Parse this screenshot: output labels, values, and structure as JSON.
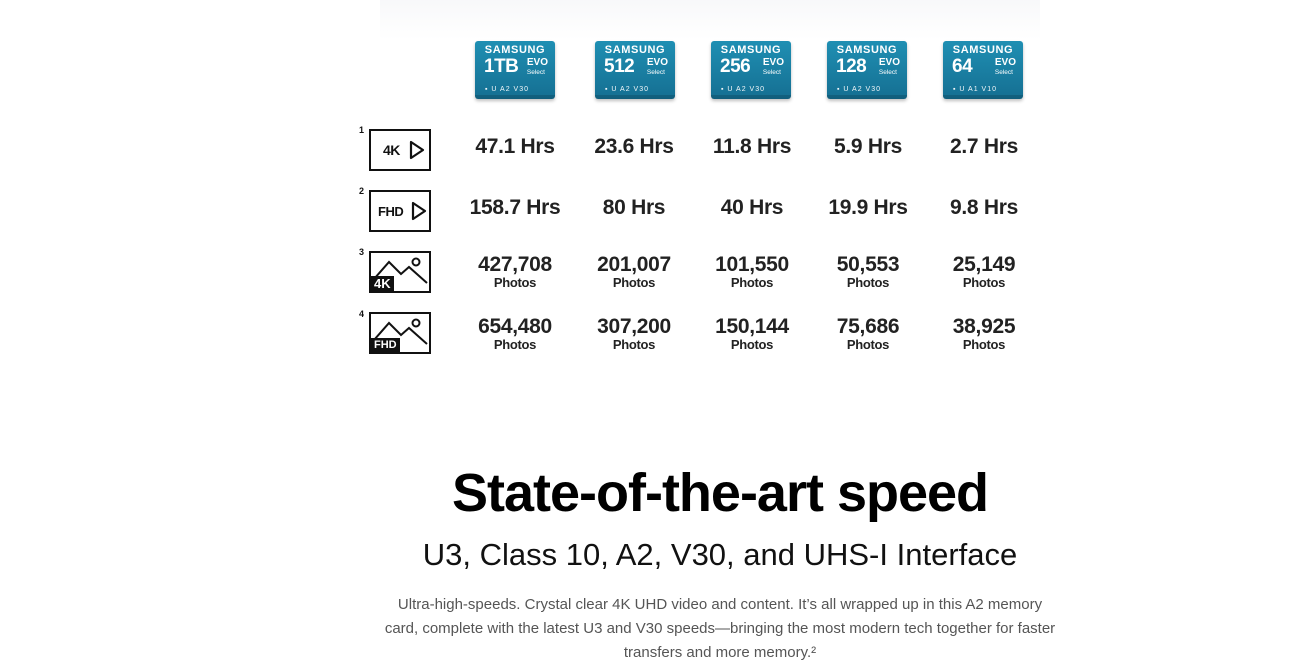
{
  "cards": [
    {
      "brand": "SAMSUNG",
      "capacity": "1TB",
      "series": "EVO",
      "sub": "Select",
      "marks": "▪ U A2 V30"
    },
    {
      "brand": "SAMSUNG",
      "capacity": "512",
      "series": "EVO",
      "sub": "Select",
      "marks": "▪ U A2 V30"
    },
    {
      "brand": "SAMSUNG",
      "capacity": "256",
      "series": "EVO",
      "sub": "Select",
      "marks": "▪ U A2 V30"
    },
    {
      "brand": "SAMSUNG",
      "capacity": "128",
      "series": "EVO",
      "sub": "Select",
      "marks": "▪ U A2 V30"
    },
    {
      "brand": "SAMSUNG",
      "capacity": "64",
      "series": "EVO",
      "sub": "Select",
      "marks": "▪ U A1 V10"
    }
  ],
  "rows": [
    {
      "sup": "1",
      "icon_label": "4K",
      "icon": "video-4k-icon",
      "values": [
        "47.1 Hrs",
        "23.6 Hrs",
        "11.8 Hrs",
        "5.9 Hrs",
        "2.7 Hrs"
      ]
    },
    {
      "sup": "2",
      "icon_label": "FHD",
      "icon": "video-fhd-icon",
      "values": [
        "158.7 Hrs",
        "80 Hrs",
        "40 Hrs",
        "19.9 Hrs",
        "9.8 Hrs"
      ]
    },
    {
      "sup": "3",
      "icon_label": "4K",
      "icon": "photo-4k-icon",
      "values": [
        "427,708",
        "201,007",
        "101,550",
        "50,553",
        "25,149"
      ],
      "unit": "Photos"
    },
    {
      "sup": "4",
      "icon_label": "FHD",
      "icon": "photo-fhd-icon",
      "values": [
        "654,480",
        "307,200",
        "150,144",
        "75,686",
        "38,925"
      ],
      "unit": "Photos"
    }
  ],
  "section": {
    "title": "State-of-the-art speed",
    "subtitle": "U3, Class 10, A2, V30, and UHS-I Interface",
    "description": "Ultra-high-speeds. Crystal clear 4K UHD video and content. It’s all wrapped up in this A2 memory card, complete with the latest U3 and V30 speeds—bringing the most modern tech together for faster transfers and more memory.²"
  }
}
